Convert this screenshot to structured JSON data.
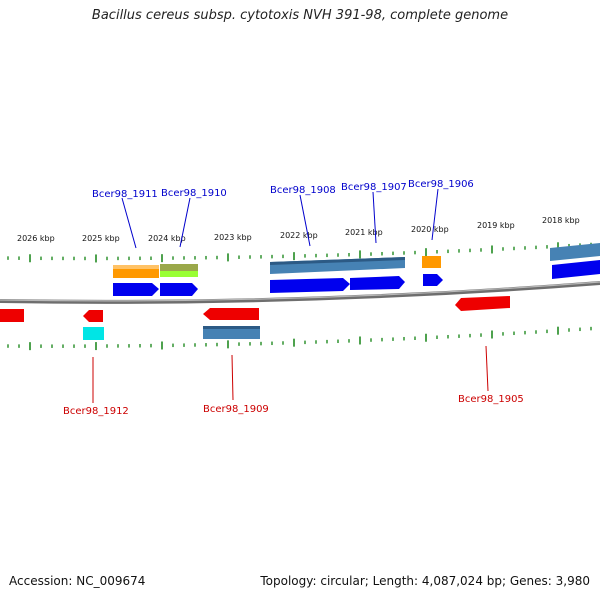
{
  "title": "Bacillus cereus subsp. cytotoxis NVH 391-98, complete genome",
  "footer": {
    "accession": "Accession: NC_009674",
    "summary": "Topology: circular; Length: 4,087,024 bp; Genes: 3,980"
  },
  "colors": {
    "backbone": "#808080",
    "tick": "#228b22",
    "forward_cds": "#0000ee",
    "reverse_cds": "#ee0000",
    "forward_label": "#0000cc",
    "reverse_label": "#cc0000",
    "feature_orange": "#ff9900",
    "feature_steelblue": "#4682b4",
    "feature_olive": "#9aa84a",
    "feature_green": "#99ff33",
    "feature_cyan": "#00e5e5"
  },
  "kbp_labels": [
    "2026 kbp",
    "2025 kbp",
    "2024 kbp",
    "2023 kbp",
    "2022 kbp",
    "2021 kbp",
    "2020 kbp",
    "2019 kbp",
    "2018 kbp"
  ],
  "gene_labels": {
    "forward": [
      "Bcer98_1911",
      "Bcer98_1910",
      "Bcer98_1908",
      "Bcer98_1907",
      "Bcer98_1906"
    ],
    "reverse": [
      "Bcer98_1912",
      "Bcer98_1909",
      "Bcer98_1905"
    ]
  }
}
